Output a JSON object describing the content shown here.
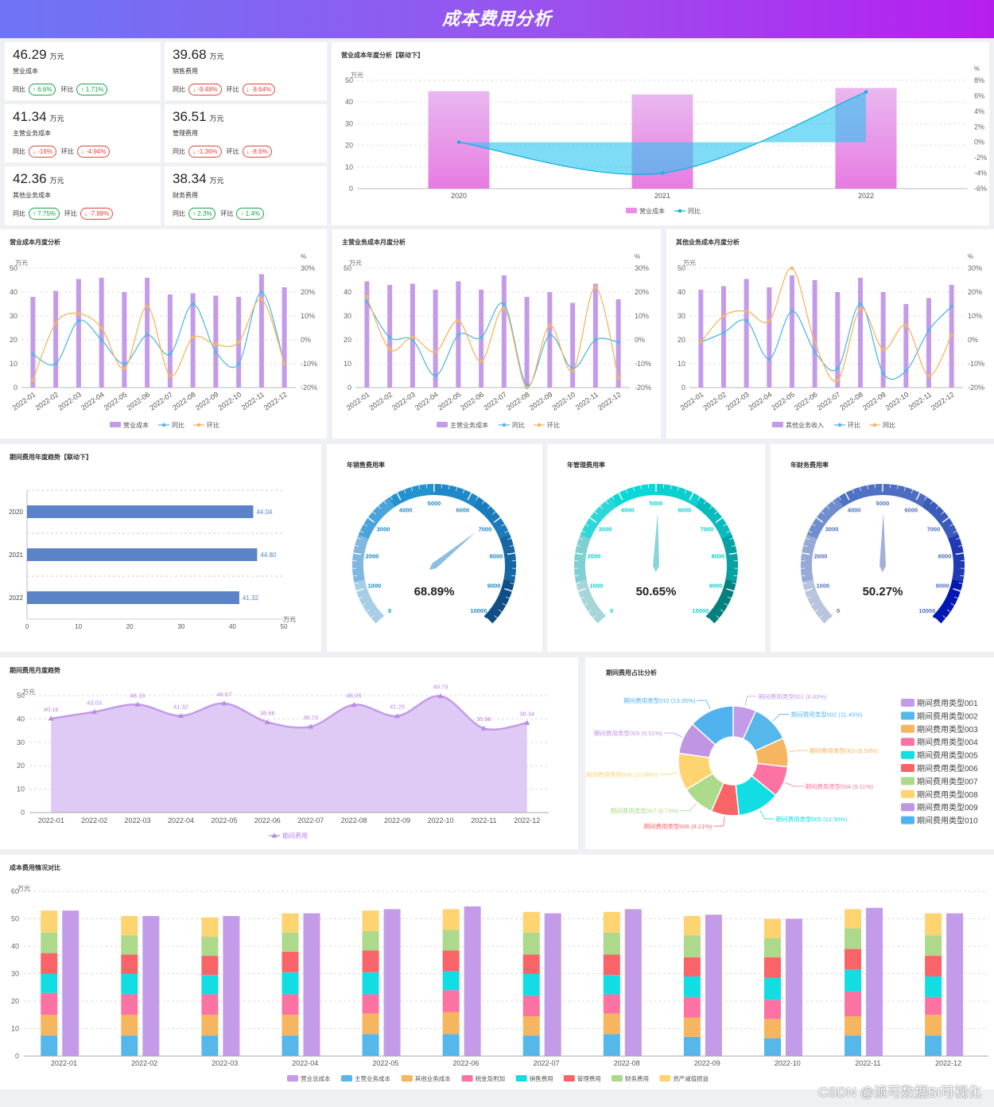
{
  "header": {
    "title": "成本费用分析"
  },
  "watermark": "CSDN @派可数据BI可视化",
  "kpis": [
    {
      "value": "46.29",
      "unit": "万元",
      "name": "营业成本",
      "yoy_label": "同比",
      "yoy": "↑ 6.6%",
      "yoy_dir": "up",
      "mom_label": "环比",
      "mom": "↑ 1.71%",
      "mom_dir": "up"
    },
    {
      "value": "39.68",
      "unit": "万元",
      "name": "销售费用",
      "yoy_label": "同比",
      "yoy": "↓ -9.48%",
      "yoy_dir": "down",
      "mom_label": "环比",
      "mom": "↓ -8.64%",
      "mom_dir": "down"
    },
    {
      "value": "41.34",
      "unit": "万元",
      "name": "主营业务成本",
      "yoy_label": "同比",
      "yoy": "↓ -16%",
      "yoy_dir": "down",
      "mom_label": "环比",
      "mom": "↓ -4.94%",
      "mom_dir": "down"
    },
    {
      "value": "36.51",
      "unit": "万元",
      "name": "管理费用",
      "yoy_label": "同比",
      "yoy": "↓ -1.36%",
      "yoy_dir": "down",
      "mom_label": "环比",
      "mom": "↓ -8.6%",
      "mom_dir": "down"
    },
    {
      "value": "42.36",
      "unit": "万元",
      "name": "其他业务成本",
      "yoy_label": "同比",
      "yoy": "↑ 7.75%",
      "yoy_dir": "up",
      "mom_label": "环比",
      "mom": "↓ -7.88%",
      "mom_dir": "down"
    },
    {
      "value": "38.34",
      "unit": "万元",
      "name": "财务费用",
      "yoy_label": "同比",
      "yoy": "↑ 2.3%",
      "yoy_dir": "up",
      "mom_label": "环比",
      "mom": "↑ 1.4%",
      "mom_dir": "up"
    }
  ],
  "colors": {
    "purple": "#c49be8",
    "blue": "#55b7ea",
    "orange": "#f6b55f",
    "gauge1": "#1e88c8",
    "gauge2": "#08d8d8",
    "gauge3": "#4f72c4",
    "hbar": "#5b83c8",
    "area": "#c9a3ee"
  },
  "chart_data": [
    {
      "id": "annual",
      "type": "bar",
      "title": "营业成本年度分析【联动下】",
      "categories": [
        "2020",
        "2021",
        "2022"
      ],
      "series": [
        {
          "name": "营业成本",
          "type": "bar",
          "values": [
            45,
            43.5,
            46.5
          ]
        },
        {
          "name": "同比",
          "type": "line",
          "values": [
            0,
            -4,
            6.5
          ]
        }
      ],
      "yunit": "万元",
      "ylim": [
        0,
        50
      ],
      "yticks": [
        "0",
        "10",
        "20",
        "30",
        "40",
        "50"
      ],
      "y2unit": "%",
      "y2lim": [
        -6,
        8
      ],
      "y2ticks": [
        "-6%",
        "-4%",
        "-2%",
        "0%",
        "2%",
        "4%",
        "6%",
        "8%"
      ]
    },
    {
      "id": "m1",
      "type": "bar",
      "title": "营业成本月度分析",
      "categories": [
        "2022-01",
        "2022-02",
        "2022-03",
        "2022-04",
        "2022-05",
        "2022-06",
        "2022-07",
        "2022-08",
        "2022-09",
        "2022-10",
        "2022-11",
        "2022-12"
      ],
      "series": [
        {
          "name": "营业成本",
          "type": "bar",
          "values": [
            38,
            40.5,
            45.5,
            46,
            40,
            46,
            39,
            39.5,
            38.5,
            38,
            47.5,
            42
          ]
        },
        {
          "name": "同比",
          "type": "line",
          "values": [
            -6,
            -10,
            8,
            0,
            -10,
            2,
            -6,
            15,
            -5,
            -10,
            20,
            -10
          ]
        },
        {
          "name": "环比",
          "type": "line",
          "values": [
            -17,
            7,
            11,
            5,
            -12,
            14,
            -15,
            1,
            -2,
            -1,
            17,
            -10
          ]
        }
      ],
      "yunit": "万元",
      "ylim": [
        0,
        50
      ],
      "yticks": [
        "0",
        "10",
        "20",
        "30",
        "40",
        "50"
      ],
      "y2unit": "%",
      "y2lim": [
        -20,
        30
      ],
      "y2ticks": [
        "-20%",
        "-10%",
        "0%",
        "10%",
        "20%",
        "30%"
      ]
    },
    {
      "id": "m2",
      "type": "bar",
      "title": "主营业务成本月度分析",
      "categories": [
        "2022-01",
        "2022-02",
        "2022-03",
        "2022-04",
        "2022-05",
        "2022-06",
        "2022-07",
        "2022-08",
        "2022-09",
        "2022-10",
        "2022-11",
        "2022-12"
      ],
      "series": [
        {
          "name": "主营业务成本",
          "type": "bar",
          "values": [
            44.5,
            43,
            43.5,
            41,
            44.5,
            41,
            47,
            38,
            40,
            35.5,
            43.5,
            37
          ]
        },
        {
          "name": "同比",
          "type": "line",
          "values": [
            16,
            1,
            0,
            -15,
            2,
            1,
            15,
            -19,
            2,
            -12,
            0,
            -1
          ]
        },
        {
          "name": "环比",
          "type": "line",
          "values": [
            18,
            -4,
            1,
            -5,
            8,
            -9,
            13,
            -20,
            6,
            -13,
            22,
            -16
          ]
        }
      ],
      "yunit": "万元",
      "ylim": [
        0,
        50
      ],
      "yticks": [
        "0",
        "10",
        "20",
        "30",
        "40",
        "50"
      ],
      "y2unit": "%",
      "y2lim": [
        -20,
        30
      ],
      "y2ticks": [
        "-20%",
        "-10%",
        "0%",
        "10%",
        "20%",
        "30%"
      ]
    },
    {
      "id": "m3",
      "type": "bar",
      "title": "其他业务成本月度分析",
      "categories": [
        "2022-01",
        "2022-02",
        "2022-03",
        "2022-04",
        "2022-05",
        "2022-06",
        "2022-07",
        "2022-08",
        "2022-09",
        "2022-10",
        "2022-11",
        "2022-12"
      ],
      "series": [
        {
          "name": "其他业务收入",
          "type": "bar",
          "values": [
            41,
            42.5,
            45.5,
            42,
            47,
            45,
            40,
            46,
            40,
            35,
            37.5,
            43
          ]
        },
        {
          "name": "环比",
          "type": "line",
          "values": [
            -1,
            3,
            8,
            -8,
            12,
            -5,
            -12,
            15,
            -14,
            -13,
            4,
            14
          ]
        },
        {
          "name": "同比",
          "type": "line",
          "values": [
            -1,
            10,
            12,
            8,
            30,
            -1,
            -17,
            13,
            -4,
            6,
            -15,
            2
          ]
        }
      ],
      "yunit": "万元",
      "ylim": [
        0,
        50
      ],
      "yticks": [
        "0",
        "10",
        "20",
        "30",
        "40",
        "50"
      ],
      "y2unit": "%",
      "y2lim": [
        -20,
        30
      ],
      "y2ticks": [
        "-20%",
        "-10%",
        "0%",
        "10%",
        "20%",
        "30%"
      ]
    },
    {
      "id": "period",
      "type": "bar",
      "orientation": "horizontal",
      "title": "期间费用年度趋势【联动下】",
      "categories": [
        "2020",
        "2021",
        "2022"
      ],
      "values": [
        44.04,
        44.8,
        41.32
      ],
      "labels": [
        "44.04",
        "44.80",
        "41.32"
      ],
      "xunit": "万元",
      "xlim": [
        0,
        50
      ],
      "xticks": [
        "0",
        "10",
        "20",
        "30",
        "40",
        "50"
      ]
    },
    {
      "id": "g1",
      "type": "gauge",
      "title": "年销售费用率",
      "value": 68.89,
      "label": "68.89%",
      "min": 0,
      "max": 10000,
      "ticks": [
        "0",
        "1000",
        "2000",
        "3000",
        "4000",
        "5000",
        "6000",
        "7000",
        "8000",
        "9000",
        "10000"
      ]
    },
    {
      "id": "g2",
      "type": "gauge",
      "title": "年管理费用率",
      "value": 50.65,
      "label": "50.65%",
      "min": 0,
      "max": 10000,
      "ticks": [
        "0",
        "1000",
        "2000",
        "3000",
        "4000",
        "5000",
        "6000",
        "7000",
        "8000",
        "9000",
        "10000"
      ]
    },
    {
      "id": "g3",
      "type": "gauge",
      "title": "年财务费用率",
      "value": 50.27,
      "label": "50.27%",
      "min": 0,
      "max": 10000,
      "ticks": [
        "0",
        "1000",
        "2000",
        "3000",
        "4000",
        "5000",
        "6000",
        "7000",
        "8000",
        "9000",
        "10000"
      ]
    },
    {
      "id": "monthly",
      "type": "area",
      "title": "期间费用月度趋势",
      "categories": [
        "2022-01",
        "2022-02",
        "2022-03",
        "2022-04",
        "2022-05",
        "2022-06",
        "2022-07",
        "2022-08",
        "2022-09",
        "2022-10",
        "2022-11",
        "2022-12"
      ],
      "series": [
        {
          "name": "期间费用",
          "values": [
            40.16,
            43.03,
            46.16,
            41.32,
            46.67,
            38.66,
            36.73,
            46.05,
            41.25,
            49.79,
            35.98,
            38.34
          ],
          "labels": [
            "40.16",
            "43.03",
            "46.16",
            "41.32",
            "46.67",
            "38.66",
            "36.73",
            "46.05",
            "41.25",
            "49.79",
            "35.98",
            "38.34"
          ]
        }
      ],
      "yunit": "万元",
      "ylim": [
        0,
        50
      ],
      "yticks": [
        "0",
        "10",
        "20",
        "30",
        "40",
        "50"
      ]
    },
    {
      "id": "donut",
      "type": "pie",
      "title": "期间费用占比分析",
      "slices": [
        {
          "name": "期间费用类型001",
          "value": 6.83,
          "label": "期间费用类型001 (6.83%)",
          "color": "#c49be8"
        },
        {
          "name": "期间费用类型002",
          "value": 11.45,
          "label": "期间费用类型002 (11.45%)",
          "color": "#55b7ea"
        },
        {
          "name": "期间费用类型003",
          "value": 8.53,
          "label": "期间费用类型003 (8.53%)",
          "color": "#f6b55f"
        },
        {
          "name": "期间费用类型004",
          "value": 9.11,
          "label": "期间费用类型004 (9.11%)",
          "color": "#fb72a3"
        },
        {
          "name": "期间费用类型005",
          "value": 12.5,
          "label": "期间费用类型005 (12.50%)",
          "color": "#11dde2"
        },
        {
          "name": "期间费用类型006",
          "value": 8.21,
          "label": "期间费用类型006 (8.21%)",
          "color": "#f96468"
        },
        {
          "name": "期间费用类型007",
          "value": 9.73,
          "label": "期间费用类型007 (9.73%)",
          "color": "#acd98a"
        },
        {
          "name": "期间费用类型008",
          "value": 10.98,
          "label": "期间费用类型008 (10.98%)",
          "color": "#fdd470"
        },
        {
          "name": "期间费用类型009",
          "value": 9.51,
          "label": "期间费用类型009 (9.51%)",
          "color": "#c096e2"
        },
        {
          "name": "期间费用类型010",
          "value": 13.35,
          "label": "期间费用类型010 (13.35%)",
          "color": "#50b3ef"
        }
      ]
    },
    {
      "id": "compare",
      "type": "bar",
      "stacked": true,
      "title": "成本费用情况对比",
      "categories": [
        "2022-01",
        "2022-02",
        "2022-03",
        "2022-04",
        "2022-05",
        "2022-06",
        "2022-07",
        "2022-08",
        "2022-09",
        "2022-10",
        "2022-11",
        "2022-12"
      ],
      "total": {
        "name": "营业总成本",
        "color": "#c49be8",
        "values": [
          53,
          51,
          51,
          52,
          53.5,
          54.5,
          52,
          53.5,
          51.5,
          50,
          54,
          52
        ]
      },
      "series": [
        {
          "name": "主营业务成本",
          "color": "#55b7ea",
          "values": [
            7.5,
            7.5,
            7.5,
            7.5,
            8,
            8,
            7.5,
            8,
            7,
            6.5,
            7.5,
            7.5
          ]
        },
        {
          "name": "其他业务成本",
          "color": "#f6b55f",
          "values": [
            7.5,
            7.5,
            7.5,
            7.5,
            7.5,
            8,
            7,
            7.5,
            7,
            7,
            7,
            7.5
          ]
        },
        {
          "name": "税金及附加",
          "color": "#fb72a3",
          "values": [
            8,
            7.5,
            7.5,
            7.5,
            7,
            8,
            7.5,
            7,
            7.5,
            7,
            9,
            6.5
          ]
        },
        {
          "name": "销售费用",
          "color": "#11dde2",
          "values": [
            7,
            7.5,
            7,
            8,
            8,
            7,
            8,
            7,
            7.5,
            8,
            8,
            7.5
          ]
        },
        {
          "name": "管理费用",
          "color": "#f96468",
          "values": [
            7.5,
            7,
            7,
            7.5,
            8,
            7.5,
            7,
            7.5,
            7,
            7.5,
            7.5,
            7.5
          ]
        },
        {
          "name": "财务费用",
          "color": "#acd98a",
          "values": [
            7.5,
            7,
            7,
            7,
            7,
            7.5,
            8,
            8,
            8,
            7,
            7.5,
            7.5
          ]
        },
        {
          "name": "资产减值损益",
          "color": "#fdd470",
          "values": [
            8,
            7,
            7,
            7,
            7.5,
            7.5,
            7.5,
            7.5,
            7,
            7,
            7,
            8
          ]
        }
      ],
      "yunit": "万元",
      "ylim": [
        0,
        60
      ],
      "yticks": [
        "0",
        "10",
        "20",
        "30",
        "40",
        "50",
        "60"
      ]
    }
  ]
}
